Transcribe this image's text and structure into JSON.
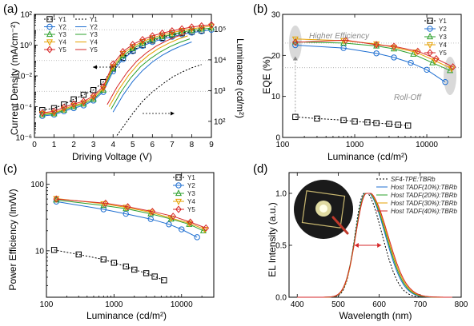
{
  "chart_data": [
    {
      "type": "line",
      "panel_label": "(a)",
      "xlabel": "Driving Voltage (V)",
      "ylabel": "Current Density (mA/cm⁻²)",
      "y2label": "Luminance (cd/m²)",
      "xlim": [
        0,
        9
      ],
      "ylim": [
        1e-06,
        100
      ],
      "y2lim": [
        30,
        300000
      ],
      "xscale": "linear",
      "yscale": "log",
      "y2scale": "log",
      "xticks": [
        "0",
        "1",
        "2",
        "3",
        "4",
        "5",
        "6",
        "7",
        "8",
        "9"
      ],
      "yticks": [
        "10⁻⁶",
        "10⁻⁴",
        "10⁻²",
        "10⁰",
        "10²"
      ],
      "y2ticks": [
        "10²",
        "10³",
        "10⁴",
        "10⁵"
      ],
      "legend": "top-left",
      "series": [
        {
          "name": "Y1",
          "axis": "left",
          "color": "#000000",
          "marker": "square",
          "dashed": true,
          "x": [
            0.4,
            1,
            1.5,
            2,
            2.5,
            3,
            3.5,
            4,
            4.5,
            5,
            5.5,
            6,
            6.5,
            7,
            7.5,
            8,
            8.5
          ],
          "y": [
            6e-05,
            8e-05,
            0.00014,
            0.0003,
            0.0006,
            0.0012,
            0.004,
            0.03,
            0.15,
            0.45,
            1,
            2,
            3,
            4.5,
            6,
            7.5,
            9
          ]
        },
        {
          "name": "Y2",
          "axis": "left",
          "color": "#1f6fd1",
          "marker": "circle",
          "dashed": false,
          "x": [
            0.4,
            1,
            1.5,
            2,
            2.5,
            3,
            3.5,
            4,
            4.5,
            5,
            5.5,
            6,
            6.5,
            7,
            7.5,
            8,
            8.5,
            9
          ],
          "y": [
            2.5e-05,
            3e-05,
            5e-05,
            8e-05,
            0.00012,
            0.00025,
            0.0009,
            0.02,
            0.12,
            0.4,
            0.9,
            1.6,
            2.5,
            3.5,
            5,
            6.5,
            8,
            10
          ]
        },
        {
          "name": "Y3",
          "axis": "left",
          "color": "#2ca02c",
          "marker": "triangle-up",
          "dashed": false,
          "x": [
            0.4,
            1,
            1.5,
            2,
            2.5,
            3,
            3.5,
            4,
            4.5,
            5,
            5.5,
            6,
            6.5,
            7,
            7.5,
            8,
            8.5,
            9
          ],
          "y": [
            3e-05,
            3.5e-05,
            6e-05,
            0.0001,
            0.00015,
            0.0003,
            0.0012,
            0.03,
            0.2,
            0.6,
            1.3,
            2.3,
            3.5,
            5,
            7,
            9,
            11,
            13
          ]
        },
        {
          "name": "Y4",
          "axis": "left",
          "color": "#e6a100",
          "marker": "triangle-down",
          "dashed": false,
          "x": [
            0.4,
            1,
            1.5,
            2,
            2.5,
            3,
            3.5,
            4,
            4.5,
            5,
            5.5,
            6,
            6.5,
            7,
            7.5,
            8,
            8.5,
            9
          ],
          "y": [
            3.5e-05,
            4e-05,
            7e-05,
            0.00012,
            0.00018,
            0.0004,
            0.0015,
            0.04,
            0.28,
            0.8,
            1.7,
            3,
            4.6,
            6.5,
            9,
            11.5,
            14,
            17
          ]
        },
        {
          "name": "Y5",
          "axis": "left",
          "color": "#d62728",
          "marker": "diamond",
          "dashed": false,
          "x": [
            0.4,
            1,
            1.5,
            2,
            2.5,
            3,
            3.5,
            4,
            4.5,
            5,
            5.5,
            6,
            6.5,
            7,
            7.5,
            8,
            8.5,
            9
          ],
          "y": [
            4e-05,
            5e-05,
            9e-05,
            0.00015,
            0.00022,
            0.0005,
            0.002,
            0.06,
            0.38,
            1.1,
            2.3,
            4,
            6,
            8.5,
            11.5,
            15,
            18,
            21
          ]
        },
        {
          "name": "Y1",
          "axis": "right",
          "color": "#000000",
          "marker": "none",
          "dashed": true,
          "x": [
            4.2,
            4.6,
            5,
            5.5,
            6,
            6.5,
            7,
            7.5,
            8,
            8.5
          ],
          "y": [
            35,
            80,
            180,
            450,
            900,
            1600,
            2700,
            4000,
            5500,
            7000
          ]
        },
        {
          "name": "Y2",
          "axis": "right",
          "color": "#1f6fd1",
          "marker": "none",
          "dashed": false,
          "x": [
            4,
            4.5,
            5,
            5.5,
            6,
            6.5,
            7,
            7.5,
            8
          ],
          "y": [
            200,
            700,
            2000,
            4500,
            8500,
            14000,
            21000,
            29000,
            38000
          ]
        },
        {
          "name": "Y3",
          "axis": "right",
          "color": "#2ca02c",
          "marker": "none",
          "dashed": false,
          "x": [
            3.9,
            4.4,
            4.9,
            5.4,
            5.9,
            6.4,
            6.9,
            7.4,
            7.9
          ],
          "y": [
            250,
            900,
            2600,
            6000,
            11000,
            18000,
            27000,
            37000,
            48000
          ]
        },
        {
          "name": "Y4",
          "axis": "right",
          "color": "#e6a100",
          "marker": "none",
          "dashed": false,
          "x": [
            3.8,
            4.3,
            4.8,
            5.3,
            5.8,
            6.3,
            6.8,
            7.3,
            7.8
          ],
          "y": [
            300,
            1100,
            3200,
            7500,
            14000,
            23000,
            34000,
            47000,
            60000
          ]
        },
        {
          "name": "Y5",
          "axis": "right",
          "color": "#d62728",
          "marker": "none",
          "dashed": false,
          "x": [
            3.7,
            4.2,
            4.7,
            5.2,
            5.7,
            6.2,
            6.7,
            7.2,
            7.7
          ],
          "y": [
            350,
            1300,
            3800,
            9000,
            17000,
            28000,
            41000,
            56000,
            72000
          ]
        }
      ]
    },
    {
      "type": "line",
      "panel_label": "(b)",
      "xlabel": "Luminance (cd/m²)",
      "ylabel": "EQE (%)",
      "xlim": [
        100,
        30000
      ],
      "ylim": [
        0,
        30
      ],
      "xscale": "log",
      "yscale": "linear",
      "xticks": [
        "100",
        "1000",
        "10000"
      ],
      "yticks": [
        "0",
        "10",
        "20",
        "30"
      ],
      "legend": "top-right",
      "annotations": [
        "Higher Efficiency",
        "Roll-Off"
      ],
      "series": [
        {
          "name": "Y1",
          "color": "#000000",
          "marker": "square",
          "dashed": true,
          "x": [
            150,
            300,
            700,
            1000,
            1500,
            2000,
            3000,
            4000,
            5500
          ],
          "y": [
            5,
            4.6,
            4.2,
            3.9,
            3.7,
            3.5,
            3.3,
            3.1,
            2.9
          ]
        },
        {
          "name": "Y2",
          "color": "#1f6fd1",
          "marker": "circle",
          "dashed": false,
          "x": [
            150,
            700,
            2000,
            3500,
            6000,
            10000,
            18000
          ],
          "y": [
            22.5,
            21.8,
            20.5,
            19.5,
            18.2,
            16.5,
            13.5
          ]
        },
        {
          "name": "Y3",
          "color": "#2ca02c",
          "marker": "triangle-up",
          "dashed": false,
          "x": [
            150,
            700,
            2000,
            3500,
            6500,
            12000,
            21000
          ],
          "y": [
            23.3,
            23,
            22.3,
            21.6,
            20.3,
            18.2,
            16.3
          ]
        },
        {
          "name": "Y4",
          "color": "#e6a100",
          "marker": "triangle-down",
          "dashed": false,
          "x": [
            150,
            700,
            2000,
            3500,
            7000,
            13000,
            22000
          ],
          "y": [
            24,
            23.6,
            22.8,
            22,
            20.8,
            18.7,
            16.8
          ]
        },
        {
          "name": "Y5",
          "color": "#d62728",
          "marker": "diamond",
          "dashed": false,
          "x": [
            150,
            750,
            2000,
            3500,
            7500,
            13500,
            23000
          ],
          "y": [
            23.2,
            23.7,
            22.6,
            22.2,
            21,
            19.2,
            17.2
          ]
        }
      ]
    },
    {
      "type": "line",
      "panel_label": "(c)",
      "xlabel": "Luminance (cd/m²)",
      "ylabel": "Power Efficiency (lm/W)",
      "xlim": [
        100,
        30000
      ],
      "ylim": [
        2,
        150
      ],
      "xscale": "log",
      "yscale": "log",
      "xticks": [
        "100",
        "1000",
        "10000"
      ],
      "yticks": [
        "10",
        "100"
      ],
      "legend": "top-right",
      "series": [
        {
          "name": "Y1",
          "color": "#000000",
          "marker": "square",
          "dashed": true,
          "x": [
            130,
            300,
            700,
            1000,
            1500,
            2000,
            3000,
            4000,
            5500
          ],
          "y": [
            10.3,
            8.8,
            7.4,
            6.6,
            5.8,
            5.2,
            4.6,
            4.1,
            3.6
          ]
        },
        {
          "name": "Y2",
          "color": "#1f6fd1",
          "marker": "circle",
          "dashed": false,
          "x": [
            140,
            700,
            1500,
            3500,
            6500,
            10000,
            17000
          ],
          "y": [
            55,
            42,
            36,
            30,
            25,
            21,
            16
          ]
        },
        {
          "name": "Y3",
          "color": "#2ca02c",
          "marker": "triangle-up",
          "dashed": false,
          "x": [
            140,
            700,
            1500,
            3500,
            7000,
            13000,
            21000
          ],
          "y": [
            58,
            48,
            43,
            36,
            30,
            25,
            20
          ]
        },
        {
          "name": "Y4",
          "color": "#e6a100",
          "marker": "triangle-down",
          "dashed": false,
          "x": [
            140,
            700,
            1500,
            3500,
            7000,
            13000,
            22000
          ],
          "y": [
            61,
            51,
            45,
            38,
            31,
            26,
            21
          ]
        },
        {
          "name": "Y5",
          "color": "#d62728",
          "marker": "diamond",
          "dashed": false,
          "x": [
            140,
            750,
            1600,
            3700,
            7500,
            13500,
            23000
          ],
          "y": [
            60,
            52,
            46,
            39,
            33,
            27,
            22
          ]
        }
      ]
    },
    {
      "type": "line",
      "panel_label": "(d)",
      "xlabel": "Wavelength (nm)",
      "ylabel": "EL Intensity (a.u.)",
      "xlim": [
        380,
        800
      ],
      "ylim": [
        0,
        1.2
      ],
      "xscale": "linear",
      "yscale": "linear",
      "xticks": [
        "400",
        "500",
        "600",
        "700",
        "800"
      ],
      "yticks": [
        "0.0",
        "0.5",
        "1.0"
      ],
      "legend": "top-right",
      "series": [
        {
          "name": "SF4-TPE:TBRb",
          "color": "#000000",
          "dashed": true,
          "peak": 563,
          "wl": 22,
          "wr": 40
        },
        {
          "name": "Host TADF(10%):TBRb",
          "color": "#1f6fd1",
          "dashed": false,
          "peak": 566,
          "wl": 24,
          "wr": 44
        },
        {
          "name": "Host TADF(20%):TBRb",
          "color": "#2ca02c",
          "dashed": false,
          "peak": 567,
          "wl": 25,
          "wr": 45
        },
        {
          "name": "Host TADF(30%):TBRb",
          "color": "#e6a100",
          "dashed": false,
          "peak": 568,
          "wl": 25,
          "wr": 46
        },
        {
          "name": "Host TADF(40%):TBRb",
          "color": "#d62728",
          "dashed": false,
          "peak": 569,
          "wl": 26,
          "wr": 47
        }
      ]
    }
  ]
}
